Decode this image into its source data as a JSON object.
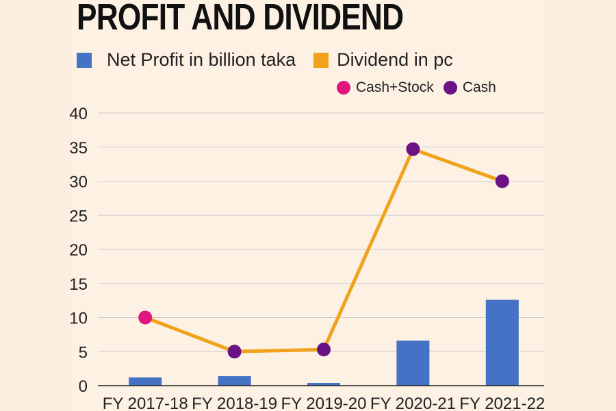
{
  "title": "PROFIT AND DIVIDEND",
  "colors": {
    "background": "#fdf1e4",
    "bar": "#4472c4",
    "line": "#f0a31a",
    "cash_stock": "#e0157e",
    "cash": "#6b1284",
    "grid": "#cfcfcf"
  },
  "legend": {
    "net_profit": "Net Profit in billion taka",
    "dividend": "Dividend in pc",
    "cash_stock": "Cash+Stock",
    "cash": "Cash"
  },
  "chart_data": {
    "type": "bar+line",
    "title": "PROFIT AND DIVIDEND",
    "categories": [
      "FY 2017-18",
      "FY 2018-19",
      "FY 2019-20",
      "FY 2020-21",
      "FY 2021-22"
    ],
    "series": [
      {
        "name": "Net Profit in billion taka",
        "kind": "bar",
        "values": [
          1.2,
          1.4,
          0.4,
          6.6,
          12.6
        ]
      },
      {
        "name": "Dividend in pc",
        "kind": "line",
        "values": [
          10,
          5,
          5.3,
          34.7,
          30
        ],
        "marker_types": [
          "Cash+Stock",
          "Cash",
          "Cash",
          "Cash",
          "Cash"
        ]
      }
    ],
    "ylim": [
      0,
      40
    ],
    "yticks": [
      "0",
      "5",
      "10",
      "15",
      "20",
      "25",
      "30",
      "35",
      "40"
    ],
    "ytick_values": [
      0,
      5,
      10,
      15,
      20,
      25,
      30,
      35,
      40
    ],
    "grid": true,
    "xlabel": "",
    "ylabel": ""
  }
}
